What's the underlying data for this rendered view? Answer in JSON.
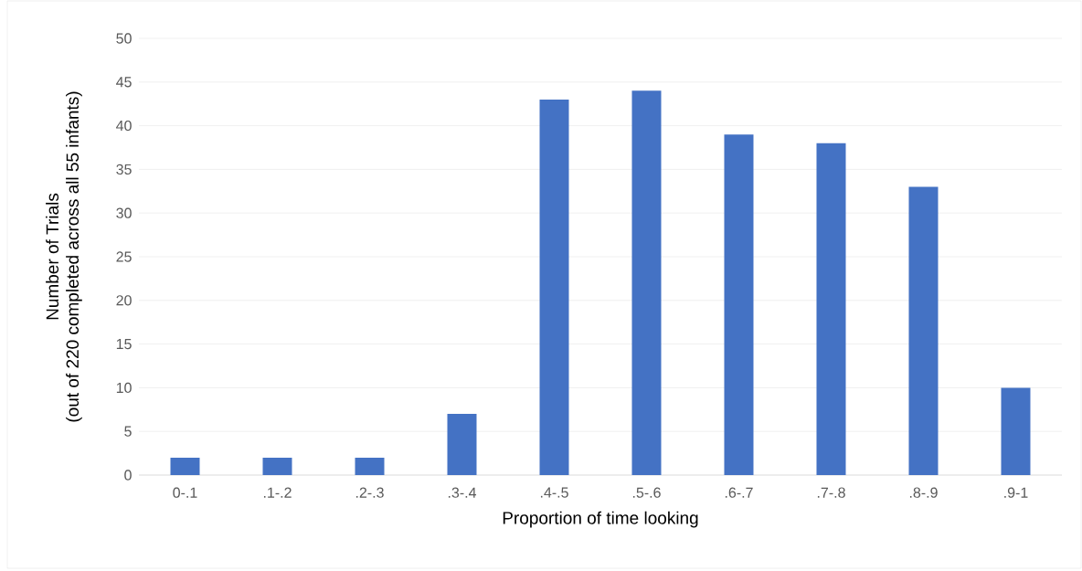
{
  "chart_data": {
    "type": "bar",
    "xlabel": "Proportion of time looking",
    "ylabel": "Number of Trials\n(out of 220 completed across all 55 infants)",
    "categories": [
      "0-.1",
      ".1-.2",
      ".2-.3",
      ".3-.4",
      ".4-.5",
      ".5-.6",
      ".6-.7",
      ".7-.8",
      ".8-.9",
      ".9-1"
    ],
    "values": [
      2,
      2,
      2,
      7,
      43,
      44,
      39,
      38,
      33,
      10
    ],
    "color": "#4472c4",
    "ylim": [
      0,
      50
    ],
    "yticks": [
      0,
      5,
      10,
      15,
      20,
      25,
      30,
      35,
      40,
      45,
      50
    ],
    "grid": "y"
  }
}
